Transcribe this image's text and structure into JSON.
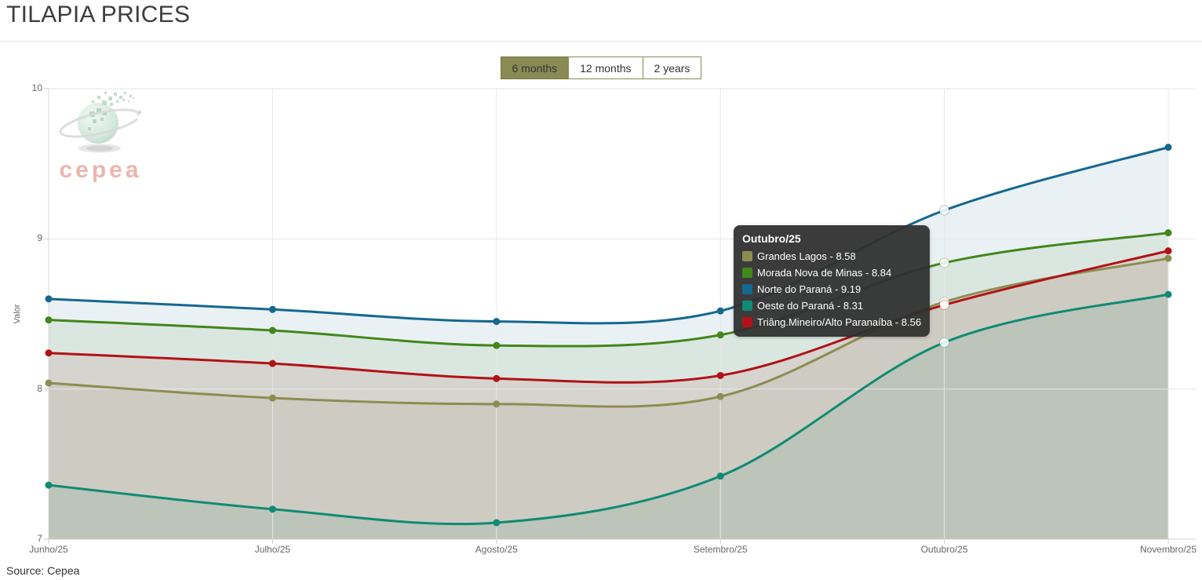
{
  "page": {
    "title": "TILAPIA PRICES",
    "source": "Source: Cepea"
  },
  "range_selector": {
    "buttons": [
      {
        "label": "6 months",
        "active": true
      },
      {
        "label": "12 months",
        "active": false
      },
      {
        "label": "2 years",
        "active": false
      }
    ],
    "active_color": "#8a8a55"
  },
  "watermark": {
    "text": "cepea"
  },
  "chart_data": {
    "type": "area",
    "title": "",
    "xlabel": "",
    "ylabel": "Valor",
    "ylim": [
      7,
      10
    ],
    "yticks": [
      7,
      8,
      9,
      10
    ],
    "grid": true,
    "legend_position": "none",
    "categories": [
      "Junho/25",
      "Julho/25",
      "Agosto/25",
      "Setembro/25",
      "Outubro/25",
      "Novembro/25"
    ],
    "series": [
      {
        "name": "Grandes Lagos",
        "color": "#8d8d52",
        "values": [
          8.04,
          7.94,
          7.9,
          7.95,
          8.58,
          8.87
        ]
      },
      {
        "name": "Morada Nova de Minas",
        "color": "#41871a",
        "values": [
          8.46,
          8.39,
          8.29,
          8.36,
          8.84,
          9.04
        ]
      },
      {
        "name": "Norte do Paraná",
        "color": "#15688f",
        "values": [
          8.6,
          8.53,
          8.45,
          8.52,
          9.19,
          9.61
        ]
      },
      {
        "name": "Oeste do Paraná",
        "color": "#0f8b74",
        "values": [
          7.36,
          7.2,
          7.11,
          7.42,
          8.31,
          8.63
        ]
      },
      {
        "name": "Triâng.Mineiro/Alto Paranaíba",
        "color": "#b11217",
        "values": [
          8.24,
          8.17,
          8.07,
          8.09,
          8.56,
          8.92
        ]
      }
    ],
    "tooltip": {
      "title": "Outubro/25",
      "category_index": 4,
      "rows": [
        {
          "color": "#8d8d52",
          "label": "Grandes Lagos - 8.58"
        },
        {
          "color": "#41871a",
          "label": "Morada Nova de Minas - 8.84"
        },
        {
          "color": "#15688f",
          "label": "Norte do Paraná - 9.19"
        },
        {
          "color": "#0f8b74",
          "label": "Oeste do Paraná - 8.31"
        },
        {
          "color": "#b11217",
          "label": "Triâng.Mineiro/Alto Paranaíba - 8.56"
        }
      ]
    }
  }
}
